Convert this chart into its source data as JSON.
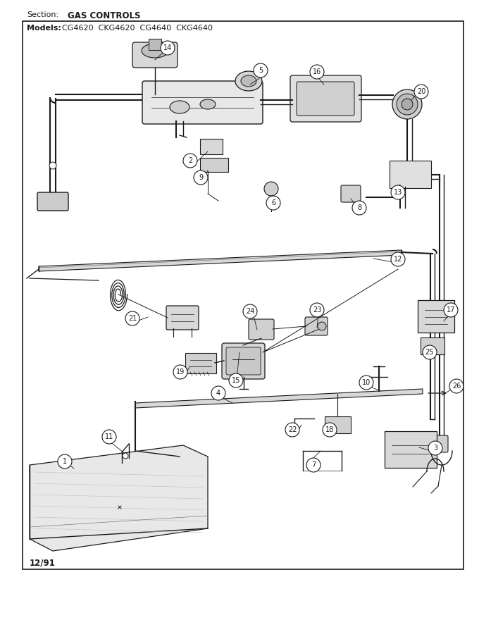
{
  "section_label": "Section:",
  "section_title": "GAS CONTROLS",
  "models_label": "Models:",
  "models": "CG4620  CKG4620  CG4640  CKG4640",
  "date_code": "12/91",
  "bg_color": "#ffffff",
  "border_color": "#000000",
  "text_color": "#000000",
  "figsize": [
    6.8,
    8.8
  ],
  "dpi": 100
}
